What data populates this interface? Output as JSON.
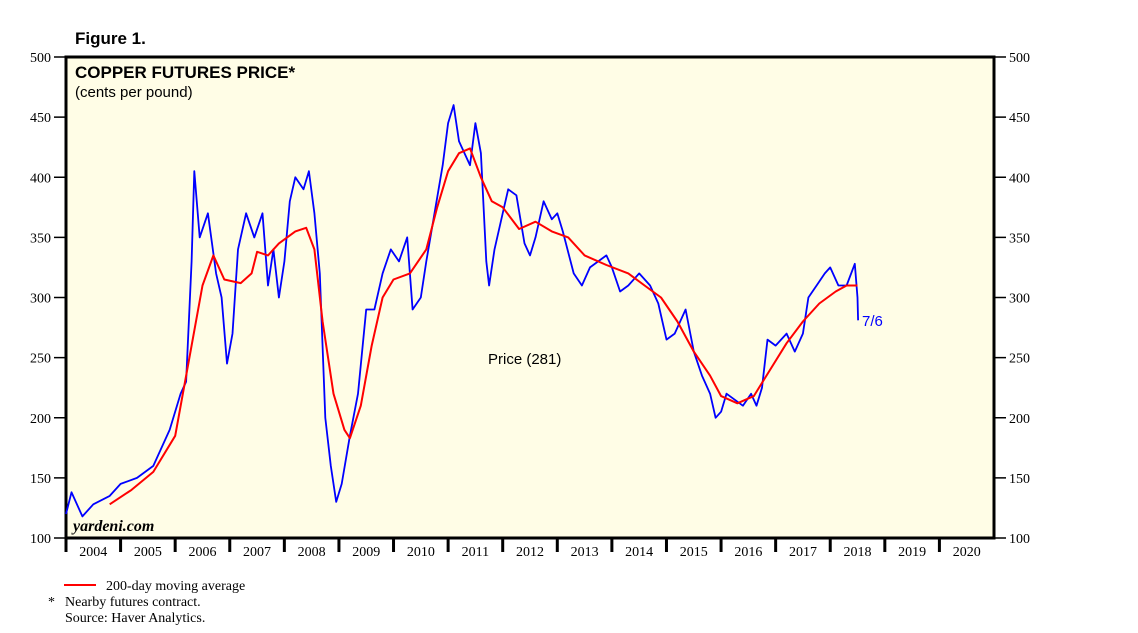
{
  "figure_label": "Figure 1.",
  "chart_data": {
    "type": "line",
    "title": "COPPER FUTURES PRICE*",
    "subtitle": "(cents per pound)",
    "xlim": [
      2004,
      2021
    ],
    "ylim": [
      100,
      500
    ],
    "yticks": [
      100,
      150,
      200,
      250,
      300,
      350,
      400,
      450,
      500
    ],
    "xtick_labels": [
      "2004",
      "2005",
      "2006",
      "2007",
      "2008",
      "2009",
      "2010",
      "2011",
      "2012",
      "2013",
      "2014",
      "2015",
      "2016",
      "2017",
      "2018",
      "2019",
      "2020"
    ],
    "grid": false,
    "watermark": "yardeni.com",
    "annotations": {
      "price_label": "Price (281)",
      "last_date": "7/6"
    },
    "colors": {
      "price": "#0000ff",
      "moving_average": "#ff0000",
      "background": "#fffde6"
    },
    "series": [
      {
        "key": "price",
        "x": [
          2004.0,
          2004.1,
          2004.3,
          2004.5,
          2004.8,
          2005.0,
          2005.3,
          2005.6,
          2005.9,
          2006.1,
          2006.2,
          2006.3,
          2006.35,
          2006.45,
          2006.6,
          2006.75,
          2006.85,
          2006.95,
          2007.05,
          2007.15,
          2007.3,
          2007.45,
          2007.6,
          2007.7,
          2007.8,
          2007.9,
          2008.0,
          2008.1,
          2008.2,
          2008.35,
          2008.45,
          2008.55,
          2008.65,
          2008.75,
          2008.85,
          2008.95,
          2009.05,
          2009.2,
          2009.35,
          2009.5,
          2009.65,
          2009.8,
          2009.95,
          2010.1,
          2010.25,
          2010.35,
          2010.5,
          2010.6,
          2010.75,
          2010.9,
          2011.0,
          2011.1,
          2011.2,
          2011.4,
          2011.5,
          2011.6,
          2011.7,
          2011.75,
          2011.85,
          2012.0,
          2012.1,
          2012.25,
          2012.4,
          2012.5,
          2012.6,
          2012.75,
          2012.9,
          2013.0,
          2013.1,
          2013.3,
          2013.45,
          2013.6,
          2013.75,
          2013.9,
          2014.0,
          2014.15,
          2014.3,
          2014.5,
          2014.7,
          2014.85,
          2015.0,
          2015.15,
          2015.35,
          2015.5,
          2015.65,
          2015.8,
          2015.9,
          2016.0,
          2016.1,
          2016.25,
          2016.4,
          2016.55,
          2016.65,
          2016.75,
          2016.85,
          2017.0,
          2017.2,
          2017.35,
          2017.5,
          2017.6,
          2017.75,
          2017.9,
          2018.0,
          2018.15,
          2018.3,
          2018.45,
          2018.5,
          2018.51
        ],
        "y": [
          120,
          138,
          118,
          128,
          135,
          145,
          150,
          160,
          190,
          220,
          230,
          330,
          405,
          350,
          370,
          320,
          300,
          245,
          270,
          340,
          370,
          350,
          370,
          310,
          340,
          300,
          330,
          380,
          400,
          390,
          405,
          370,
          320,
          200,
          160,
          130,
          145,
          185,
          220,
          290,
          290,
          320,
          340,
          330,
          350,
          290,
          300,
          330,
          370,
          410,
          445,
          460,
          430,
          410,
          445,
          420,
          330,
          310,
          340,
          370,
          390,
          385,
          345,
          335,
          350,
          380,
          365,
          370,
          355,
          320,
          310,
          325,
          330,
          335,
          325,
          305,
          310,
          320,
          310,
          295,
          265,
          270,
          290,
          255,
          235,
          220,
          200,
          205,
          220,
          215,
          210,
          220,
          210,
          225,
          265,
          260,
          270,
          255,
          270,
          300,
          310,
          320,
          325,
          310,
          310,
          328,
          300,
          281
        ]
      },
      {
        "key": "moving_average",
        "name": "200-day moving average",
        "x": [
          2004.8,
          2005.2,
          2005.6,
          2006.0,
          2006.3,
          2006.5,
          2006.7,
          2006.9,
          2007.2,
          2007.4,
          2007.5,
          2007.7,
          2007.9,
          2008.2,
          2008.4,
          2008.55,
          2008.7,
          2008.9,
          2009.1,
          2009.2,
          2009.4,
          2009.6,
          2009.8,
          2010.0,
          2010.3,
          2010.6,
          2010.8,
          2011.0,
          2011.2,
          2011.4,
          2011.6,
          2011.8,
          2012.0,
          2012.3,
          2012.6,
          2012.9,
          2013.2,
          2013.5,
          2013.9,
          2014.3,
          2014.6,
          2014.9,
          2015.2,
          2015.5,
          2015.8,
          2016.0,
          2016.3,
          2016.6,
          2016.9,
          2017.2,
          2017.5,
          2017.8,
          2018.1,
          2018.3,
          2018.5
        ],
        "y": [
          128,
          140,
          155,
          185,
          260,
          310,
          335,
          315,
          312,
          320,
          338,
          335,
          345,
          355,
          358,
          340,
          280,
          220,
          190,
          183,
          210,
          260,
          300,
          315,
          320,
          340,
          375,
          405,
          420,
          424,
          400,
          380,
          375,
          357,
          363,
          355,
          350,
          335,
          327,
          320,
          310,
          300,
          280,
          255,
          235,
          218,
          212,
          218,
          240,
          262,
          280,
          295,
          305,
          310,
          310
        ]
      }
    ]
  },
  "footnotes": {
    "legend_ma": "200-day moving average",
    "asterisk": "*",
    "note": "Nearby futures contract.",
    "source": "Source: Haver Analytics."
  }
}
